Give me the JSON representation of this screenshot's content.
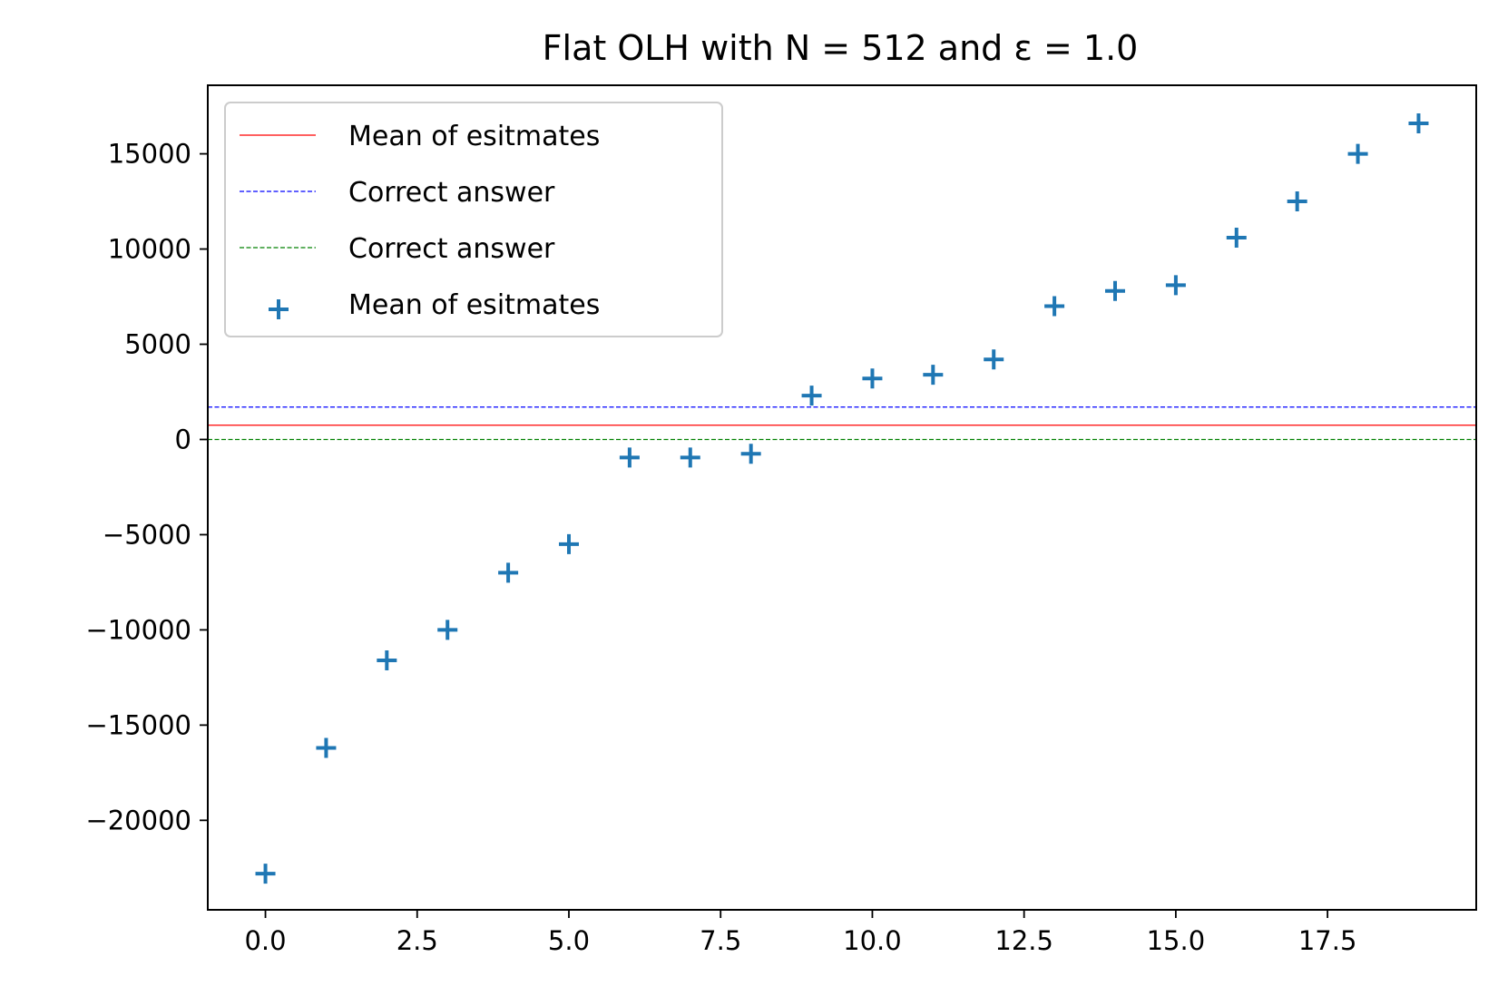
{
  "chart_data": {
    "type": "scatter",
    "title": "Flat OLH with N = 512 and ε = 1.0",
    "xlabel": "",
    "ylabel": "",
    "xlim": [
      -0.95,
      19.95
    ],
    "ylim": [
      -24700,
      18600
    ],
    "xticks": [
      0,
      2.5,
      5,
      7.5,
      10,
      12.5,
      15,
      17.5
    ],
    "xtick_labels": [
      "0.0",
      "2.5",
      "5.0",
      "7.5",
      "10.0",
      "12.5",
      "15.0",
      "17.5"
    ],
    "yticks": [
      15000,
      10000,
      5000,
      0,
      -5000,
      -10000,
      -15000,
      -20000
    ],
    "ytick_labels": [
      "15000",
      "10000",
      "5000",
      "0",
      "−5000",
      "−10000",
      "−15000",
      "−20000"
    ],
    "grid": false,
    "legend_position": "top-left",
    "series": [
      {
        "name": "Mean of esitmates",
        "kind": "hline",
        "y": 750,
        "color": "#ff0000",
        "style": "solid"
      },
      {
        "name": "Correct answer",
        "kind": "hline",
        "y": 1700,
        "color": "#0000ff",
        "style": "dashed"
      },
      {
        "name": "Correct answer",
        "kind": "hline",
        "y": 0,
        "color": "#008000",
        "style": "dashed"
      },
      {
        "name": "Mean of esitmates",
        "kind": "scatter",
        "marker": "plus",
        "color": "#1f77b4",
        "x": [
          0,
          1,
          2,
          3,
          4,
          5,
          6,
          7,
          8,
          9,
          10,
          11,
          12,
          13,
          14,
          15,
          16,
          17,
          18,
          19
        ],
        "y": [
          -22800,
          -16200,
          -11600,
          -10000,
          -7000,
          -5500,
          -950,
          -950,
          -750,
          2300,
          3200,
          3400,
          4200,
          7000,
          7800,
          8100,
          10600,
          12500,
          15000,
          16600
        ]
      }
    ]
  }
}
